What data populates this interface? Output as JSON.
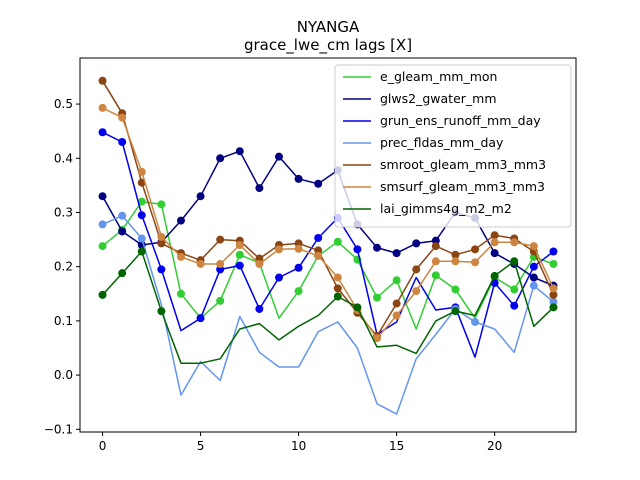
{
  "chart_data": {
    "type": "line",
    "title": "NYANGA",
    "subtitle": "grace_lwe_cm lags [X]",
    "xlabel": "",
    "ylabel": "",
    "xlim": [
      -1.15,
      24.15
    ],
    "ylim": [
      -0.105,
      0.585
    ],
    "xticks": [
      0,
      5,
      10,
      15,
      20
    ],
    "yticks": [
      -0.1,
      0.0,
      0.1,
      0.2,
      0.3,
      0.4,
      0.5
    ],
    "ytick_labels": [
      "−0.1",
      "0.0",
      "0.1",
      "0.2",
      "0.3",
      "0.4",
      "0.5"
    ],
    "grid": false,
    "legend_position": "upper right",
    "x": [
      0,
      1,
      2,
      3,
      4,
      5,
      6,
      7,
      8,
      9,
      10,
      11,
      12,
      13,
      14,
      15,
      16,
      17,
      18,
      19,
      20,
      21,
      22,
      23
    ],
    "series": [
      {
        "name": "e_gleam_mm_mon",
        "color": "#32cd32",
        "markers": [
          0,
          1,
          2,
          3,
          4,
          5,
          6,
          7,
          8,
          10,
          11,
          12,
          13,
          14,
          15,
          17,
          18,
          20,
          21,
          22,
          23
        ],
        "values": [
          0.238,
          0.268,
          0.32,
          0.315,
          0.15,
          0.105,
          0.137,
          0.222,
          0.207,
          0.105,
          0.155,
          0.22,
          0.246,
          0.213,
          0.143,
          0.175,
          0.085,
          0.184,
          0.158,
          0.105,
          0.18,
          0.158,
          0.218,
          0.205
        ]
      },
      {
        "name": "glws2_gwater_mm",
        "color": "#000080",
        "markers": [
          0,
          1,
          2,
          3,
          4,
          5,
          6,
          7,
          8,
          9,
          10,
          11,
          12,
          13,
          14,
          15,
          16,
          17,
          18,
          19,
          20,
          21,
          22,
          23
        ],
        "values": [
          0.33,
          0.265,
          0.24,
          0.245,
          0.285,
          0.33,
          0.4,
          0.413,
          0.345,
          0.403,
          0.362,
          0.353,
          0.378,
          0.278,
          0.235,
          0.225,
          0.243,
          0.248,
          0.3,
          0.29,
          0.225,
          0.205,
          0.18,
          0.165
        ]
      },
      {
        "name": "grun_ens_runoff_mm_day",
        "color": "#0000ee",
        "markers": [
          0,
          1,
          2,
          3,
          5,
          6,
          7,
          8,
          9,
          10,
          11,
          12,
          13,
          18,
          20,
          21,
          22,
          23
        ],
        "values": [
          0.448,
          0.43,
          0.295,
          0.195,
          0.082,
          0.105,
          0.195,
          0.202,
          0.122,
          0.18,
          0.198,
          0.253,
          0.29,
          0.232,
          0.075,
          0.098,
          0.18,
          0.12,
          0.125,
          0.033,
          0.17,
          0.128,
          0.2,
          0.228
        ]
      },
      {
        "name": "prec_fldas_mm_day",
        "color": "#6495ed",
        "markers": [
          0,
          1,
          2,
          18,
          19,
          22,
          23
        ],
        "values": [
          0.278,
          0.294,
          0.252,
          0.13,
          -0.037,
          0.025,
          -0.01,
          0.108,
          0.042,
          0.015,
          0.015,
          0.08,
          0.098,
          0.05,
          -0.053,
          -0.072,
          0.03,
          0.075,
          0.122,
          0.098,
          0.085,
          0.042,
          0.165,
          0.135
        ]
      },
      {
        "name": "smroot_gleam_mm3_mm3",
        "color": "#8b4513",
        "markers": [
          0,
          1,
          2,
          3,
          4,
          5,
          6,
          7,
          8,
          9,
          10,
          11,
          12,
          13,
          14,
          15,
          16,
          17,
          18,
          19,
          20,
          21,
          22,
          23
        ],
        "values": [
          0.543,
          0.483,
          0.355,
          0.243,
          0.225,
          0.212,
          0.25,
          0.248,
          0.215,
          0.24,
          0.243,
          0.23,
          0.16,
          0.115,
          0.072,
          0.132,
          0.195,
          0.238,
          0.222,
          0.232,
          0.258,
          0.252,
          0.228,
          0.148
        ]
      },
      {
        "name": "smsurf_gleam_mm3_mm3",
        "color": "#cd853f",
        "markers": [
          0,
          1,
          2,
          3,
          4,
          5,
          6,
          7,
          8,
          9,
          10,
          11,
          12,
          13,
          14,
          15,
          16,
          17,
          18,
          19,
          20,
          21,
          22,
          23
        ],
        "values": [
          0.493,
          0.475,
          0.375,
          0.255,
          0.218,
          0.205,
          0.205,
          0.24,
          0.205,
          0.232,
          0.233,
          0.22,
          0.18,
          0.12,
          0.068,
          0.11,
          0.155,
          0.21,
          0.21,
          0.208,
          0.245,
          0.245,
          0.238,
          0.16
        ]
      },
      {
        "name": "lai_gimms4g_m2_m2",
        "color": "#006400",
        "markers": [
          0,
          1,
          2,
          3,
          12,
          13,
          18,
          20,
          21,
          23
        ],
        "values": [
          0.148,
          0.188,
          0.228,
          0.118,
          0.022,
          0.022,
          0.03,
          0.085,
          0.095,
          0.065,
          0.09,
          0.11,
          0.145,
          0.125,
          0.052,
          0.055,
          0.04,
          0.1,
          0.118,
          0.11,
          0.183,
          0.21,
          0.09,
          0.125
        ]
      }
    ]
  }
}
